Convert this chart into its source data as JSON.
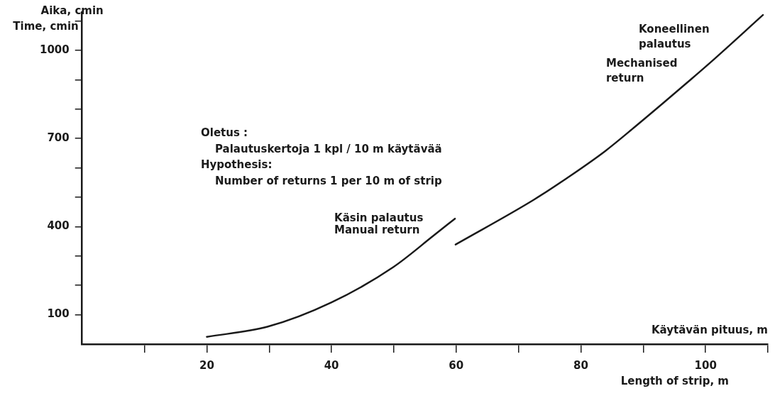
{
  "chart_data": {
    "type": "line",
    "ylabel": "Aika, cmin",
    "xlabel": "Käytävän pituus, m",
    "annotations": [
      "Time, cmin",
      "Length of strip, m",
      "Oletus :\nPalautuskertoja 1 kpl / 10 m käytävää\nHypothesis:\nNumber of returns 1 per 10 m of strip"
    ],
    "xlim": [
      0,
      110
    ],
    "xticks": [
      {
        "value": 10,
        "label": null
      },
      20,
      {
        "value": 30,
        "label": null
      },
      40,
      {
        "value": 50,
        "label": null
      },
      60,
      {
        "value": 70,
        "label": null
      },
      80,
      {
        "value": 90,
        "label": null
      },
      100,
      {
        "value": 110,
        "label": null
      }
    ],
    "ylim": [
      0,
      1130
    ],
    "yticks": [
      100,
      {
        "value": 200,
        "label": null
      },
      {
        "value": 300,
        "label": null
      },
      400,
      {
        "value": 500,
        "label": null
      },
      {
        "value": 600,
        "label": null
      },
      700,
      {
        "value": 800,
        "label": null
      },
      {
        "value": 900,
        "label": null
      },
      1000,
      {
        "value": 1100,
        "label": null
      }
    ],
    "series": [
      {
        "name": "Käsin palautus\nManual return",
        "color": "#1a1a1a",
        "x": [
          20,
          29.7,
          40,
          49.9,
          56.3,
          59.8
        ],
        "values": [
          25,
          59,
          142,
          262,
          368,
          427
        ]
      },
      {
        "name": "Koneellinen\npalautus\nMechanised\nreturn",
        "color": "#1a1a1a",
        "x": [
          59.9,
          72.5,
          77.9,
          83.9,
          88.7,
          93.3,
          97,
          100.7,
          109.2
        ],
        "values": [
          339,
          492,
          567,
          657,
          740,
          822,
          889,
          957,
          1120
        ]
      }
    ]
  }
}
